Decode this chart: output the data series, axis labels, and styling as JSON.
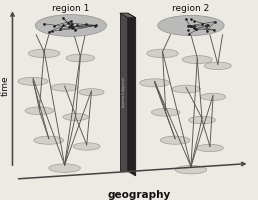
{
  "bg_color": "#ede9e3",
  "region1_label": "region 1",
  "region2_label": "region 2",
  "time_label": "time",
  "geography_label": "geography",
  "barrier_text": "barreira à dispersal",
  "tree_color": "#555555",
  "dot_color": "#222222",
  "arrow_color": "#444444",
  "ellipse_fill_top": "#b5b5b5",
  "ellipse_fill_small": "#c8c8c0",
  "ellipse_edge": "#888888",
  "barrier_front": "#4a4a4a",
  "barrier_side": "#222222",
  "barrier_top": "#666666"
}
